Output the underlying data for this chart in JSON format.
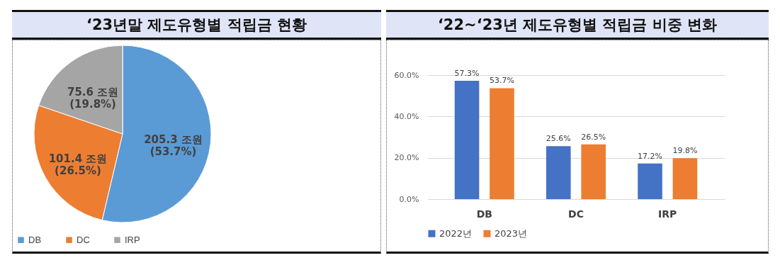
{
  "chart_data": [
    {
      "type": "pie",
      "title": "‘23년말 제도유형별 적립금 현황",
      "categories": [
        "DB",
        "DC",
        "IRP"
      ],
      "values": [
        205.3,
        101.4,
        75.6
      ],
      "colors": [
        "#5b9bd5",
        "#ed7d31",
        "#a5a5a5"
      ],
      "value_labels": [
        "205.3 조원\n(53.7%)",
        "101.4 조원\n(26.5%)",
        "75.6 조원\n(19.8%)"
      ],
      "legend": "bottom"
    },
    {
      "type": "bar",
      "title": "‘22~‘23년 제도유형별 적립금 비중 변화",
      "categories": [
        "DB",
        "DC",
        "IRP"
      ],
      "series": [
        {
          "name": "2022년",
          "color": "#4472c4",
          "values": [
            57.3,
            25.6,
            17.2
          ],
          "value_labels": [
            "57.3%",
            "25.6%",
            "17.2%"
          ]
        },
        {
          "name": "2023년",
          "color": "#ed7d31",
          "values": [
            53.7,
            26.5,
            19.8
          ],
          "value_labels": [
            "53.7%",
            "26.5%",
            "19.8%"
          ]
        }
      ],
      "ylim": [
        0,
        60
      ],
      "yticks": [
        {
          "value": 0,
          "label": "0.0%"
        },
        {
          "value": 20,
          "label": "20.0%"
        },
        {
          "value": 40,
          "label": "40.0%"
        },
        {
          "value": 60,
          "label": "60.0%"
        }
      ],
      "grid": "y",
      "legend": "bottom"
    }
  ]
}
